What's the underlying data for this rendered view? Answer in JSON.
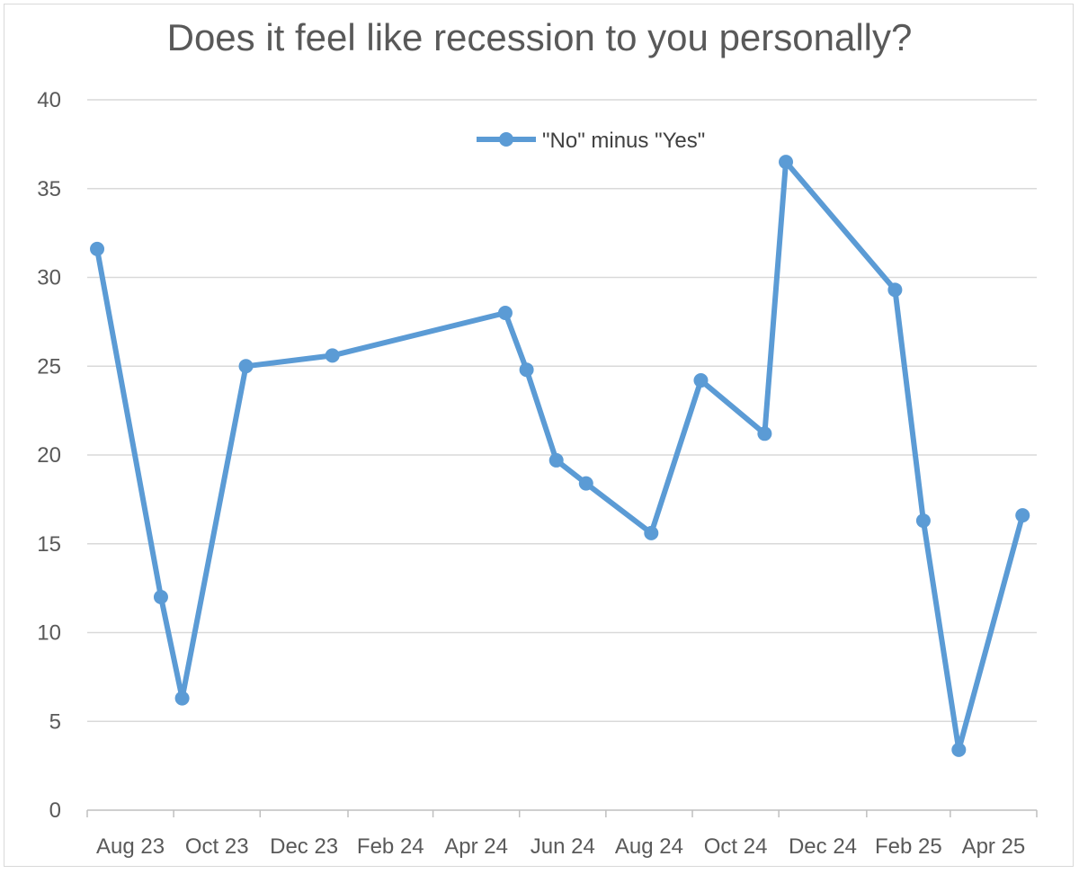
{
  "chart_data": {
    "type": "line",
    "title": "Does it feel like recession to you personally?",
    "xlabel": "",
    "ylabel": "",
    "ylim": [
      0,
      40
    ],
    "yticks": [
      0,
      5,
      10,
      15,
      20,
      25,
      30,
      35,
      40
    ],
    "xlim": [
      "2023-08-01",
      "2025-06-01"
    ],
    "xticks": [
      {
        "date": "2023-08-01",
        "label": "Aug 23"
      },
      {
        "date": "2023-10-01",
        "label": "Oct 23"
      },
      {
        "date": "2023-12-01",
        "label": "Dec 23"
      },
      {
        "date": "2024-02-01",
        "label": "Feb 24"
      },
      {
        "date": "2024-04-01",
        "label": "Apr 24"
      },
      {
        "date": "2024-06-01",
        "label": "Jun 24"
      },
      {
        "date": "2024-08-01",
        "label": "Aug 24"
      },
      {
        "date": "2024-10-01",
        "label": "Oct 24"
      },
      {
        "date": "2024-12-01",
        "label": "Dec 24"
      },
      {
        "date": "2025-02-01",
        "label": "Feb 25"
      },
      {
        "date": "2025-04-01",
        "label": "Apr 25"
      }
    ],
    "grid": true,
    "legend": "top-center",
    "series": [
      {
        "name": "\"No\" minus \"Yes\"",
        "color": "#5b9bd5",
        "points": [
          {
            "x": "2023-08-08",
            "y": 31.6
          },
          {
            "x": "2023-09-22",
            "y": 12.0
          },
          {
            "x": "2023-10-07",
            "y": 6.3
          },
          {
            "x": "2023-11-21",
            "y": 25.0
          },
          {
            "x": "2024-01-21",
            "y": 25.6
          },
          {
            "x": "2024-05-22",
            "y": 28.0
          },
          {
            "x": "2024-06-06",
            "y": 24.8
          },
          {
            "x": "2024-06-27",
            "y": 19.7
          },
          {
            "x": "2024-07-18",
            "y": 18.4
          },
          {
            "x": "2024-09-02",
            "y": 15.6
          },
          {
            "x": "2024-10-07",
            "y": 24.2
          },
          {
            "x": "2024-11-21",
            "y": 21.2
          },
          {
            "x": "2024-12-06",
            "y": 36.5
          },
          {
            "x": "2025-02-21",
            "y": 29.3
          },
          {
            "x": "2025-03-13",
            "y": 16.3
          },
          {
            "x": "2025-04-07",
            "y": 3.4
          },
          {
            "x": "2025-05-22",
            "y": 16.6
          }
        ]
      }
    ]
  }
}
